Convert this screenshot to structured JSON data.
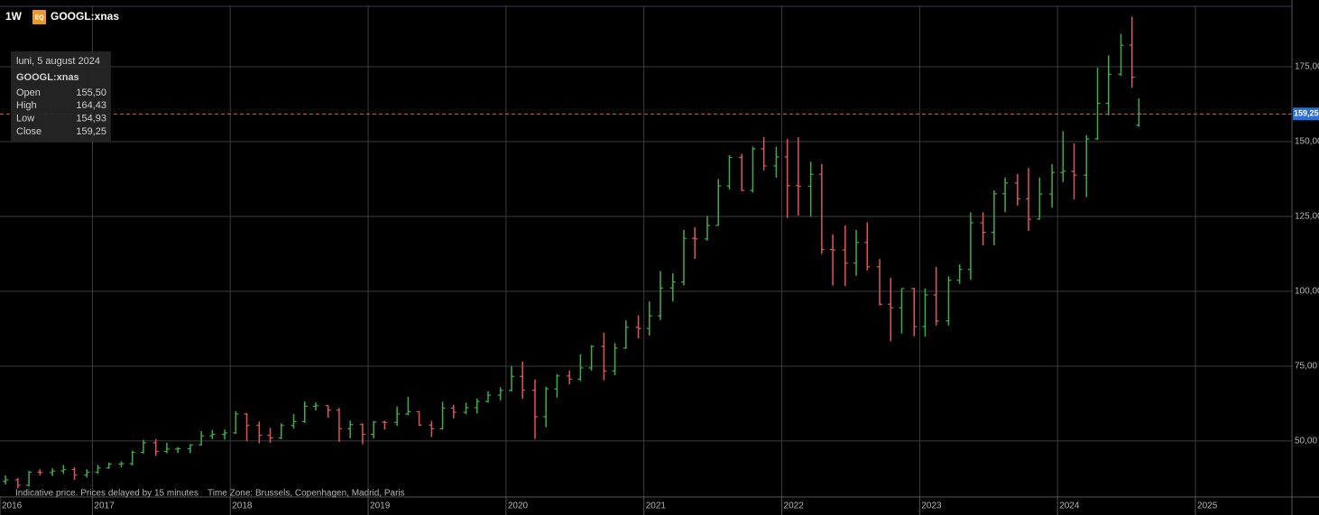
{
  "header": {
    "interval": "1W",
    "badge": "EQ",
    "symbol": "GOOGL:xnas"
  },
  "tooltip": {
    "date": "luni, 5 august 2024",
    "symbol": "GOOGL:xnas",
    "rows": [
      {
        "label": "Open",
        "value": "155,50"
      },
      {
        "label": "High",
        "value": "164,43"
      },
      {
        "label": "Low",
        "value": "154,93"
      },
      {
        "label": "Close",
        "value": "159,25"
      }
    ]
  },
  "footer": {
    "note": "Indicative price. Prices delayed by 15 minutes",
    "timezone": "Time Zone: Brussels, Copenhagen, Madrid, Paris"
  },
  "chart_data": {
    "type": "ohlc",
    "up_color": "#3fae49",
    "down_color": "#e0565b",
    "grid": true,
    "last_price": {
      "value": 159.25,
      "label": "159,25"
    },
    "last_price_color": "#2f6fd6",
    "xlim": [
      2016.33,
      2025.7
    ],
    "xticks": [
      2016,
      2017,
      2018,
      2019,
      2020,
      2021,
      2022,
      2023,
      2024,
      2025
    ],
    "ylim": [
      31.3,
      195.2
    ],
    "yticks": [
      {
        "value": 50,
        "label": "50,00"
      },
      {
        "value": 75,
        "label": "75,00"
      },
      {
        "value": 100,
        "label": "100,00"
      },
      {
        "value": 125,
        "label": "125,00"
      },
      {
        "value": 150,
        "label": "150,00"
      },
      {
        "value": 175,
        "label": "175,00"
      }
    ],
    "x": [
      2016.37,
      2016.46,
      2016.54,
      2016.62,
      2016.71,
      2016.79,
      2016.87,
      2016.96,
      2017.04,
      2017.12,
      2017.21,
      2017.29,
      2017.37,
      2017.46,
      2017.54,
      2017.62,
      2017.71,
      2017.79,
      2017.87,
      2017.96,
      2018.04,
      2018.12,
      2018.21,
      2018.29,
      2018.37,
      2018.46,
      2018.54,
      2018.62,
      2018.71,
      2018.79,
      2018.87,
      2018.96,
      2019.04,
      2019.12,
      2019.21,
      2019.29,
      2019.37,
      2019.46,
      2019.54,
      2019.62,
      2019.71,
      2019.79,
      2019.87,
      2019.96,
      2020.04,
      2020.12,
      2020.21,
      2020.29,
      2020.37,
      2020.46,
      2020.54,
      2020.62,
      2020.71,
      2020.79,
      2020.87,
      2020.96,
      2021.04,
      2021.12,
      2021.21,
      2021.29,
      2021.37,
      2021.46,
      2021.54,
      2021.62,
      2021.71,
      2021.79,
      2021.87,
      2021.96,
      2022.04,
      2022.12,
      2022.21,
      2022.29,
      2022.37,
      2022.46,
      2022.54,
      2022.62,
      2022.71,
      2022.79,
      2022.87,
      2022.96,
      2023.04,
      2023.12,
      2023.21,
      2023.29,
      2023.37,
      2023.46,
      2023.54,
      2023.62,
      2023.71,
      2023.79,
      2023.87,
      2023.96,
      2024.04,
      2024.12,
      2024.21,
      2024.29,
      2024.37,
      2024.46,
      2024.54,
      2024.59
    ],
    "open": [
      36.5,
      37.0,
      35.2,
      39.6,
      39.5,
      40.0,
      40.5,
      38.6,
      39.6,
      41.0,
      42.3,
      42.4,
      46.2,
      49.4,
      46.5,
      47.3,
      47.4,
      48.7,
      51.7,
      52.2,
      52.7,
      59.0,
      55.2,
      51.9,
      51.0,
      55.2,
      56.5,
      61.6,
      61.8,
      60.3,
      54.1,
      55.5,
      52.2,
      56.3,
      56.2,
      59.0,
      59.8,
      55.3,
      54.1,
      61.0,
      59.6,
      61.1,
      63.2,
      65.3,
      66.9,
      71.6,
      67.0,
      58.1,
      67.4,
      71.7,
      70.7,
      74.4,
      81.6,
      73.4,
      81.0,
      88.0,
      87.6,
      91.8,
      101.1,
      103.1,
      117.7,
      117.5,
      122.0,
      135.2,
      144.7,
      133.7,
      147.6,
      141.9,
      144.9,
      135.3,
      135.1,
      139.1,
      114.0,
      113.8,
      109.4,
      116.3,
      108.2,
      95.7,
      94.5,
      100.9,
      88.2,
      98.8,
      90.1,
      103.7,
      107.3,
      122.9,
      119.7,
      132.6,
      136.2,
      130.9,
      124.1,
      132.5,
      139.7,
      140.1,
      138.8,
      150.9,
      162.8,
      172.5,
      182.2,
      155.5
    ],
    "high": [
      38.5,
      37.6,
      40.0,
      40.6,
      40.9,
      42.0,
      41.2,
      40.5,
      42.0,
      42.8,
      43.2,
      46.8,
      50.4,
      50.6,
      49.4,
      48.0,
      48.9,
      53.3,
      53.7,
      53.8,
      60.0,
      59.3,
      56.5,
      54.4,
      55.9,
      59.0,
      63.2,
      62.9,
      61.9,
      61.0,
      56.8,
      55.9,
      56.7,
      56.8,
      61.5,
      64.8,
      60.0,
      56.7,
      63.1,
      62.0,
      62.8,
      64.2,
      66.6,
      68.0,
      75.0,
      76.5,
      70.5,
      68.1,
      72.3,
      73.6,
      79.0,
      82.0,
      86.2,
      82.7,
      90.3,
      92.0,
      96.6,
      106.8,
      106.0,
      120.5,
      121.4,
      125.2,
      137.5,
      145.5,
      145.9,
      148.3,
      151.5,
      148.3,
      150.9,
      151.5,
      143.3,
      142.5,
      119.0,
      122.0,
      120.5,
      123.0,
      110.8,
      104.5,
      101.0,
      101.2,
      101.0,
      108.2,
      105.0,
      109.0,
      126.4,
      126.4,
      133.7,
      138.0,
      139.2,
      141.2,
      138.0,
      142.5,
      153.5,
      149.4,
      152.2,
      174.7,
      178.8,
      186.0,
      191.75,
      164.43
    ],
    "low": [
      35.5,
      34.2,
      34.8,
      38.5,
      38.3,
      39.0,
      37.0,
      37.8,
      39.0,
      40.7,
      41.2,
      41.8,
      45.8,
      45.0,
      45.9,
      46.0,
      45.9,
      48.5,
      50.6,
      50.5,
      52.4,
      50.0,
      49.2,
      49.4,
      50.6,
      54.1,
      56.0,
      60.2,
      57.8,
      49.7,
      50.9,
      48.9,
      50.9,
      53.8,
      55.0,
      58.6,
      55.0,
      51.3,
      53.9,
      57.5,
      58.9,
      59.2,
      62.8,
      63.6,
      66.5,
      64.1,
      50.7,
      54.6,
      64.5,
      68.9,
      70.0,
      73.5,
      70.3,
      72.0,
      80.8,
      84.3,
      85.2,
      90.4,
      96.6,
      102.0,
      110.8,
      116.9,
      121.9,
      134.0,
      133.5,
      133.0,
      140.4,
      138.0,
      124.5,
      125.3,
      124.9,
      112.5,
      101.9,
      101.8,
      105.2,
      107.0,
      95.3,
      83.3,
      85.9,
      85.0,
      84.9,
      88.6,
      88.6,
      102.5,
      103.8,
      115.4,
      115.4,
      126.4,
      128.6,
      120.2,
      124.0,
      127.9,
      136.5,
      130.7,
      131.5,
      150.6,
      158.8,
      172.0,
      168.0,
      154.93
    ],
    "close": [
      37.0,
      35.2,
      39.6,
      39.5,
      40.0,
      40.5,
      38.6,
      39.6,
      41.0,
      42.3,
      42.4,
      46.2,
      49.4,
      46.5,
      47.3,
      47.4,
      48.7,
      51.7,
      52.2,
      52.7,
      59.0,
      55.2,
      51.9,
      51.0,
      55.2,
      56.5,
      61.6,
      61.8,
      60.3,
      54.1,
      55.5,
      52.2,
      56.3,
      56.2,
      59.0,
      59.8,
      55.3,
      54.1,
      61.0,
      59.6,
      61.1,
      63.2,
      65.3,
      66.9,
      71.6,
      67.0,
      58.1,
      67.4,
      71.7,
      70.7,
      74.4,
      81.6,
      73.4,
      81.0,
      88.0,
      87.6,
      91.8,
      101.1,
      103.1,
      117.7,
      117.5,
      122.0,
      135.2,
      144.7,
      133.7,
      147.6,
      141.9,
      144.9,
      135.3,
      135.1,
      139.1,
      114.0,
      113.8,
      109.4,
      116.3,
      108.2,
      95.7,
      94.5,
      100.9,
      88.2,
      98.8,
      90.1,
      103.7,
      107.3,
      122.9,
      119.7,
      132.6,
      136.2,
      130.9,
      124.1,
      132.5,
      139.7,
      140.1,
      138.8,
      150.9,
      162.8,
      172.5,
      182.2,
      171.5,
      159.25
    ]
  }
}
